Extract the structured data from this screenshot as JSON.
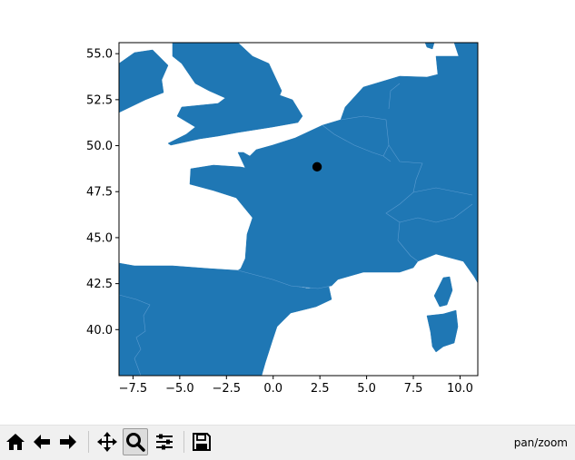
{
  "map": {
    "x_ticks": [
      "−7.5",
      "−5.0",
      "−2.5",
      "0.0",
      "2.5",
      "5.0",
      "7.5",
      "10.0"
    ],
    "y_ticks": [
      "55.0",
      "52.5",
      "50.0",
      "47.5",
      "45.0",
      "42.5",
      "40.0"
    ],
    "x_tick_values": [
      -7.5,
      -5.0,
      -2.5,
      0.0,
      2.5,
      5.0,
      7.5,
      10.0
    ],
    "y_tick_values": [
      55.0,
      52.5,
      50.0,
      47.5,
      45.0,
      42.5,
      40.0
    ],
    "xlim": [
      -8.25,
      10.95
    ],
    "ylim": [
      37.5,
      55.6
    ],
    "land_color": "#1f77b4",
    "marker": {
      "lon": 2.35,
      "lat": 48.85,
      "color": "#000000"
    }
  },
  "toolbar": {
    "buttons": [
      "home-icon",
      "back-arrow-icon",
      "forward-arrow-icon",
      "pan-icon",
      "zoom-icon",
      "configure-subplots-icon",
      "save-icon"
    ],
    "active": "zoom-icon",
    "mode_label": "pan/zoom"
  }
}
